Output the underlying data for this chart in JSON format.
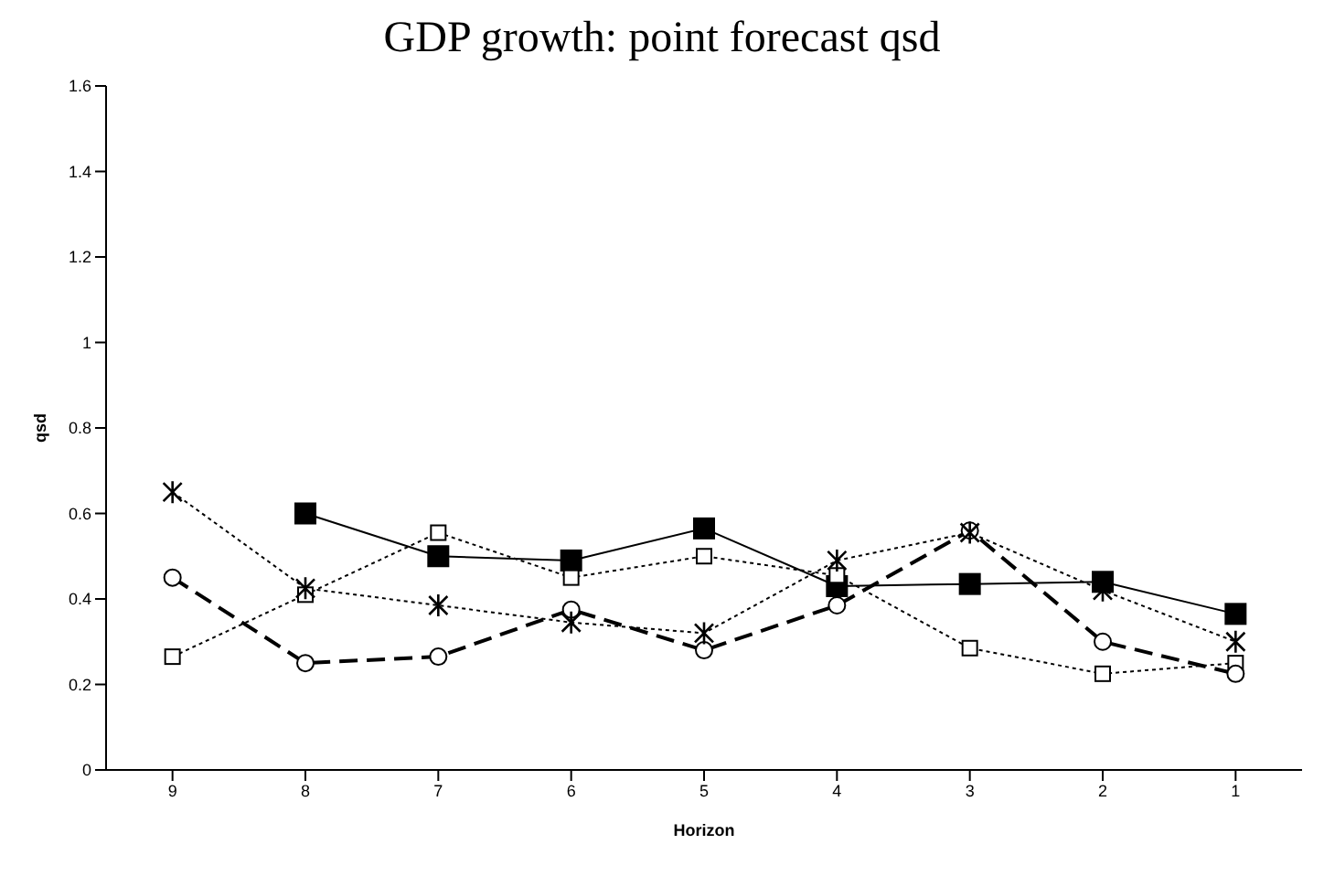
{
  "chart_data": {
    "type": "line",
    "title": "GDP growth: point forecast qsd",
    "xlabel": "Horizon",
    "ylabel": "qsd",
    "categories": [
      "9",
      "8",
      "7",
      "6",
      "5",
      "4",
      "3",
      "2",
      "1"
    ],
    "series": [
      {
        "color": "#000000",
        "marker": "square",
        "line_style": "solid",
        "values": [
          null,
          0.6,
          0.5,
          0.49,
          0.565,
          0.43,
          0.435,
          0.44,
          0.365
        ]
      },
      {
        "color": "#000000",
        "marker": "square",
        "line_style": "dotted",
        "values": [
          0.265,
          0.41,
          0.555,
          0.45,
          0.5,
          0.455,
          0.285,
          0.225,
          0.25
        ]
      },
      {
        "color": "#000000",
        "marker": "cross",
        "line_style": "dotted",
        "values": [
          0.65,
          0.425,
          0.385,
          0.345,
          0.32,
          0.49,
          0.555,
          0.42,
          0.3
        ]
      },
      {
        "color": "#000000",
        "marker": "circle",
        "line_style": "dashed",
        "values": [
          0.45,
          0.25,
          0.265,
          0.375,
          0.28,
          0.385,
          0.56,
          0.3,
          0.225
        ]
      }
    ],
    "ylim": [
      0,
      1.6
    ],
    "yticks": [
      0,
      0.2,
      0.4,
      0.6,
      0.8,
      1,
      1.2,
      1.4,
      1.6
    ],
    "grid": false,
    "legend": false
  }
}
